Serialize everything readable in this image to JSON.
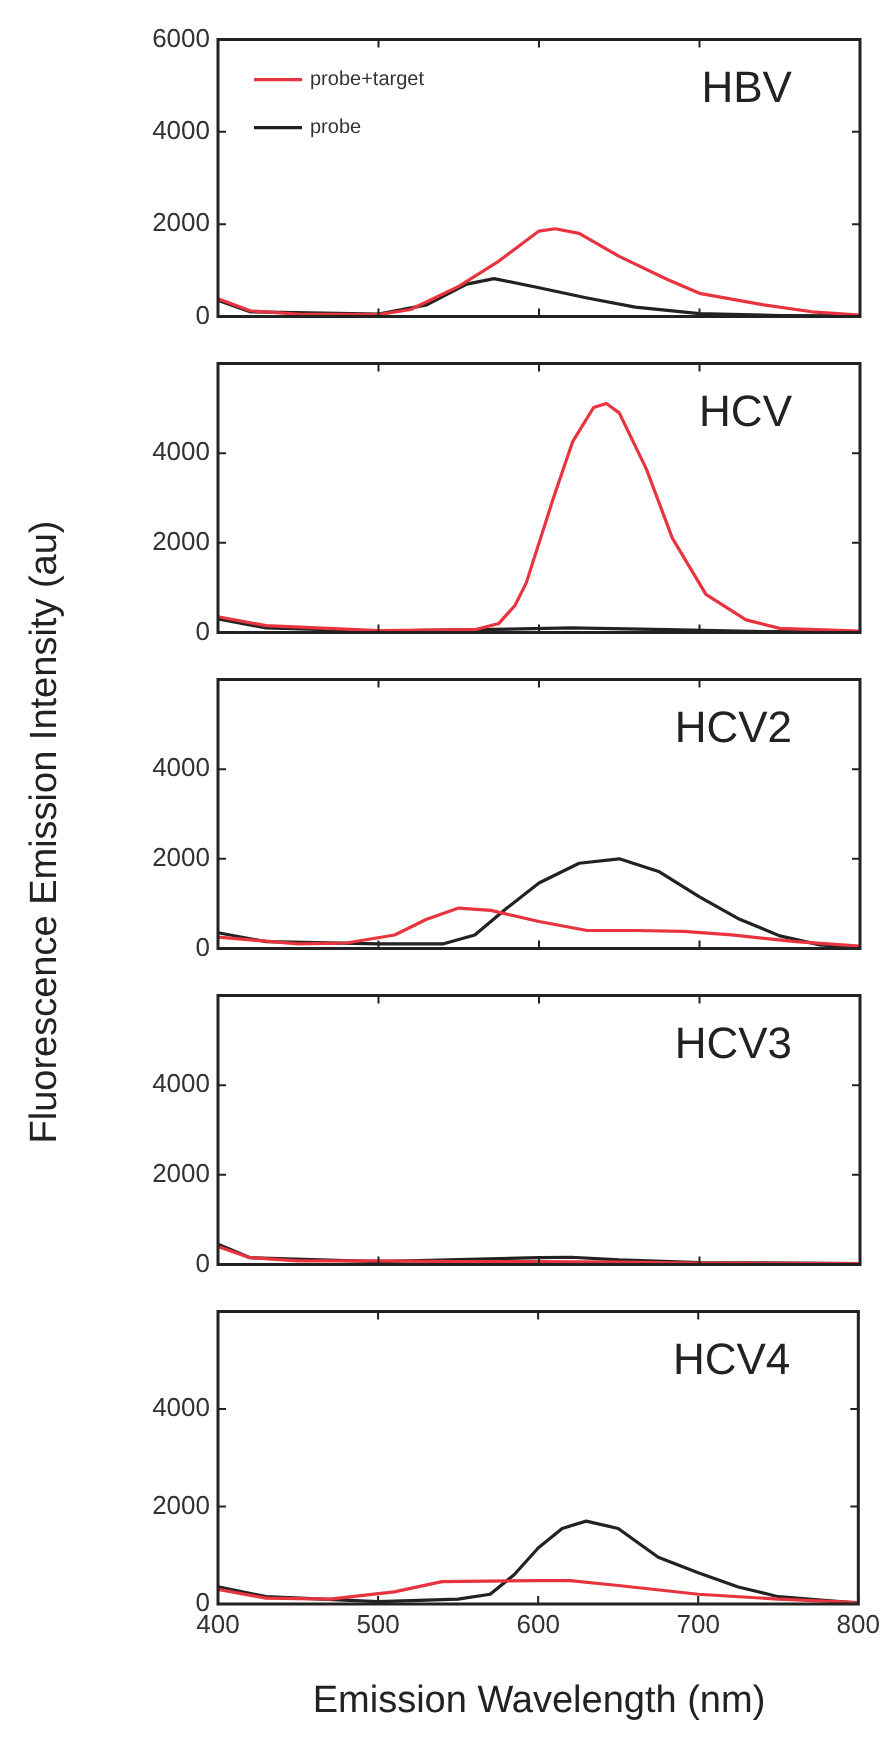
{
  "chart_data": [
    {
      "type": "line",
      "title": "HBV",
      "ylabel": "Fluorescence Emission Intensity (au)",
      "legend": "top left",
      "xlim": [
        400,
        800
      ],
      "xticks": [
        400,
        500,
        600,
        700,
        800
      ],
      "ylim": [
        0,
        6000
      ],
      "yticks": [
        0,
        2000,
        4000,
        6000
      ],
      "tick_labels": "y",
      "series": [
        {
          "name": "probe+target",
          "color": "#e8343f",
          "x": [
            400,
            420,
            450,
            500,
            520,
            550,
            575,
            600,
            610,
            625,
            650,
            680,
            700,
            740,
            770,
            800
          ],
          "values": [
            380,
            120,
            50,
            40,
            150,
            650,
            1200,
            1850,
            1900,
            1800,
            1300,
            800,
            500,
            250,
            100,
            30
          ]
        },
        {
          "name": "probe",
          "color": "#222222",
          "x": [
            400,
            420,
            500,
            530,
            555,
            572,
            600,
            630,
            660,
            700,
            750,
            800
          ],
          "values": [
            350,
            100,
            50,
            250,
            700,
            820,
            620,
            400,
            200,
            60,
            20,
            10
          ]
        }
      ]
    },
    {
      "type": "line",
      "title": "HCV",
      "xlim": [
        400,
        800
      ],
      "xticks": [
        400,
        500,
        600,
        700,
        800
      ],
      "ylim": [
        0,
        6000
      ],
      "yticks": [
        0,
        2000,
        4000
      ],
      "tick_labels": "y",
      "series": [
        {
          "color": "#e8343f",
          "x": [
            400,
            430,
            500,
            560,
            575,
            585,
            592,
            609,
            621,
            634,
            642,
            650,
            667,
            683,
            704,
            729,
            750,
            800
          ],
          "values": [
            350,
            150,
            40,
            60,
            200,
            600,
            1100,
            3000,
            4260,
            5020,
            5110,
            4900,
            3640,
            2110,
            850,
            280,
            90,
            30
          ]
        },
        {
          "color": "#222222",
          "x": [
            400,
            430,
            500,
            560,
            620,
            680,
            740,
            800
          ],
          "values": [
            300,
            100,
            30,
            60,
            100,
            60,
            20,
            10
          ]
        }
      ]
    },
    {
      "type": "line",
      "title": "HCV2",
      "xlim": [
        400,
        800
      ],
      "xticks": [
        400,
        500,
        600,
        700,
        800
      ],
      "ylim": [
        0,
        6000
      ],
      "yticks": [
        0,
        2000,
        4000
      ],
      "tick_labels": "y",
      "series": [
        {
          "color": "#e8343f",
          "x": [
            400,
            450,
            480,
            510,
            530,
            550,
            570,
            600,
            630,
            660,
            690,
            720,
            760,
            800
          ],
          "values": [
            250,
            100,
            120,
            300,
            650,
            900,
            850,
            600,
            400,
            400,
            380,
            300,
            150,
            50
          ]
        },
        {
          "color": "#222222",
          "x": [
            400,
            430,
            500,
            540,
            560,
            580,
            600,
            625,
            650,
            675,
            700,
            725,
            750,
            775,
            800
          ],
          "values": [
            350,
            150,
            100,
            100,
            300,
            900,
            1460,
            1900,
            2000,
            1710,
            1150,
            650,
            280,
            80,
            20
          ]
        }
      ]
    },
    {
      "type": "line",
      "title": "HCV3",
      "xlim": [
        400,
        800
      ],
      "xticks": [
        400,
        500,
        600,
        700,
        800
      ],
      "ylim": [
        0,
        6000
      ],
      "yticks": [
        0,
        2000,
        4000
      ],
      "tick_labels": "y",
      "series": [
        {
          "color": "#e8343f",
          "x": [
            400,
            420,
            450,
            500,
            550,
            600,
            650,
            700,
            800
          ],
          "values": [
            400,
            150,
            80,
            80,
            60,
            60,
            50,
            30,
            20
          ]
        },
        {
          "color": "#222222",
          "x": [
            400,
            420,
            500,
            600,
            620,
            650,
            700,
            800
          ],
          "values": [
            450,
            150,
            60,
            150,
            160,
            100,
            40,
            20
          ]
        }
      ]
    },
    {
      "type": "line",
      "title": "HCV4",
      "xlabel": "Emission Wavelength (nm)",
      "xlim": [
        400,
        800
      ],
      "xticks": [
        400,
        500,
        600,
        700,
        800
      ],
      "ylim": [
        0,
        6000
      ],
      "yticks": [
        0,
        2000,
        4000
      ],
      "series": [
        {
          "color": "#e8343f",
          "x": [
            400,
            430,
            470,
            510,
            540,
            600,
            620,
            650,
            700,
            750,
            800
          ],
          "values": [
            300,
            120,
            100,
            250,
            460,
            480,
            480,
            380,
            200,
            100,
            30
          ]
        },
        {
          "color": "#222222",
          "x": [
            400,
            430,
            500,
            550,
            570,
            585,
            600,
            615,
            630,
            650,
            675,
            700,
            725,
            750,
            800
          ],
          "values": [
            350,
            150,
            50,
            100,
            200,
            600,
            1150,
            1550,
            1700,
            1550,
            960,
            640,
            350,
            150,
            20
          ]
        }
      ]
    }
  ]
}
